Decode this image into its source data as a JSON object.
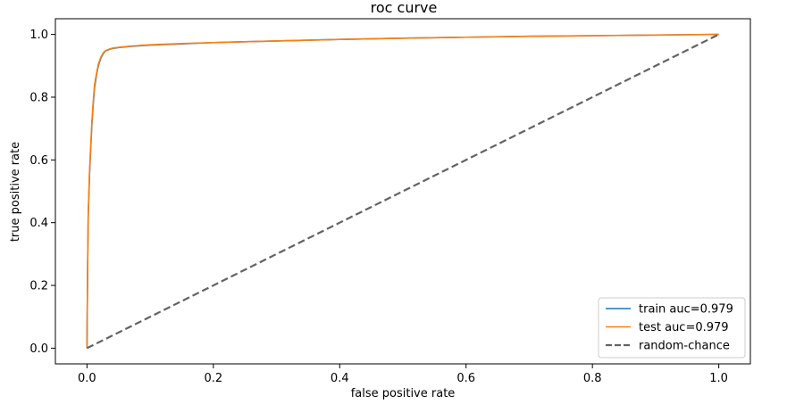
{
  "chart_data": {
    "type": "line",
    "title": "roc curve",
    "xlabel": "false positive rate",
    "ylabel": "true positive rate",
    "xlim": [
      -0.05,
      1.05
    ],
    "ylim": [
      -0.05,
      1.05
    ],
    "xticks": [
      0.0,
      0.2,
      0.4,
      0.6,
      0.8,
      1.0
    ],
    "yticks": [
      0.0,
      0.2,
      0.4,
      0.6,
      0.8,
      1.0
    ],
    "xtick_labels": [
      "0.0",
      "0.2",
      "0.4",
      "0.6",
      "0.8",
      "1.0"
    ],
    "ytick_labels": [
      "0.0",
      "0.2",
      "0.4",
      "0.6",
      "0.8",
      "1.0"
    ],
    "grid": false,
    "legend_position": "lower-right",
    "series": [
      {
        "name": "train auc=0.979",
        "color": "#1f77b4",
        "style": "solid",
        "x": [
          0,
          0.001,
          0.002,
          0.004,
          0.006,
          0.008,
          0.01,
          0.012,
          0.015,
          0.018,
          0.022,
          0.026,
          0.03,
          0.035,
          0.04,
          0.05,
          0.07,
          0.1,
          0.15,
          0.2,
          0.3,
          0.4,
          0.5,
          0.6,
          0.7,
          0.8,
          0.9,
          1.0
        ],
        "y": [
          0,
          0.25,
          0.42,
          0.55,
          0.64,
          0.72,
          0.78,
          0.83,
          0.87,
          0.9,
          0.925,
          0.94,
          0.948,
          0.952,
          0.955,
          0.958,
          0.962,
          0.966,
          0.97,
          0.974,
          0.979,
          0.984,
          0.988,
          0.991,
          0.994,
          0.996,
          0.998,
          1.0
        ]
      },
      {
        "name": "test auc=0.979",
        "color": "#ff7f0e",
        "style": "solid",
        "x": [
          0,
          0.001,
          0.002,
          0.004,
          0.006,
          0.008,
          0.01,
          0.012,
          0.015,
          0.018,
          0.022,
          0.026,
          0.03,
          0.035,
          0.04,
          0.05,
          0.07,
          0.1,
          0.15,
          0.2,
          0.3,
          0.4,
          0.5,
          0.6,
          0.7,
          0.8,
          0.9,
          1.0
        ],
        "y": [
          0,
          0.26,
          0.43,
          0.56,
          0.65,
          0.73,
          0.79,
          0.84,
          0.875,
          0.905,
          0.928,
          0.942,
          0.949,
          0.953,
          0.956,
          0.959,
          0.963,
          0.967,
          0.971,
          0.974,
          0.979,
          0.984,
          0.988,
          0.991,
          0.994,
          0.996,
          0.998,
          1.0
        ]
      },
      {
        "name": "random-chance",
        "color": "#636363",
        "style": "dashed",
        "x": [
          0,
          1
        ],
        "y": [
          0,
          1
        ]
      }
    ]
  }
}
